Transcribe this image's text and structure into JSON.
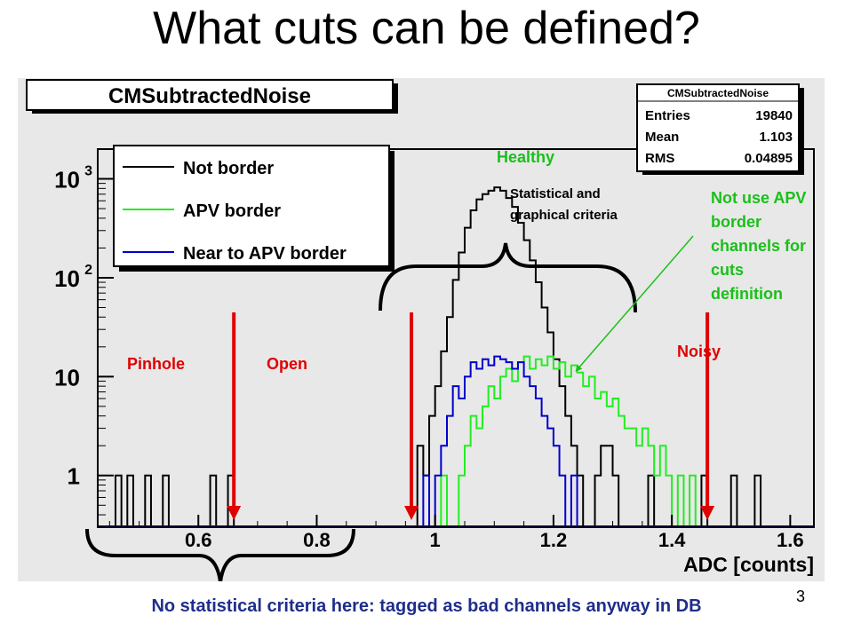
{
  "slide": {
    "title": "What cuts can be defined?",
    "footer": "No statistical criteria here: tagged as bad channels anyway in DB",
    "page_number": "3"
  },
  "stats_box": {
    "title": "CMSubtractedNoise",
    "entries_label": "Entries",
    "entries_value": "19840",
    "mean_label": "Mean",
    "mean_value": "1.103",
    "rms_label": "RMS",
    "rms_value": "0.04895"
  },
  "annotations": {
    "healthy": "Healthy",
    "statistical": [
      "Statistical and",
      "graphical criteria"
    ],
    "pinhole": "Pinhole",
    "open": "Open",
    "noisy": "Noisy",
    "apv_note": [
      "Not use APV",
      "border",
      "channels for",
      "cuts",
      "definition"
    ]
  },
  "colors": {
    "cut_arrow": "#e00000",
    "annotation_green": "#19c019",
    "label_red": "#e00000",
    "footer_blue": "#1f2e8a",
    "plot_background": "#e8e8e8",
    "not_border": "#000000",
    "apv_border": "#22ee22",
    "near_apv_border": "#0000cc"
  },
  "chart_data": {
    "type": "line",
    "title": "CMSubtractedNoise",
    "xlabel": "ADC [counts]",
    "ylabel": "",
    "xlim": [
      0.43,
      1.64
    ],
    "ylim": [
      0.3,
      2000
    ],
    "yscale": "log",
    "x_ticks": [
      "0.6",
      "0.8",
      "1",
      "1.2",
      "1.4",
      "1.6"
    ],
    "y_ticks": [
      {
        "value": 1,
        "base": "1",
        "exp": ""
      },
      {
        "value": 10,
        "base": "10",
        "exp": ""
      },
      {
        "value": 100,
        "base": "10",
        "exp": "2"
      },
      {
        "value": 1000,
        "base": "10",
        "exp": "3"
      }
    ],
    "legend_placement": "top-left",
    "series": [
      {
        "name": "Not border",
        "color": "#000000",
        "points": [
          [
            0.45,
            0.3
          ],
          [
            0.46,
            1
          ],
          [
            0.47,
            0.3
          ],
          [
            0.48,
            1
          ],
          [
            0.49,
            0.3
          ],
          [
            0.51,
            1
          ],
          [
            0.52,
            0.3
          ],
          [
            0.54,
            1
          ],
          [
            0.55,
            0.3
          ],
          [
            0.62,
            1
          ],
          [
            0.63,
            0.3
          ],
          [
            0.65,
            1
          ],
          [
            0.66,
            0.3
          ],
          [
            0.97,
            2
          ],
          [
            0.98,
            1
          ],
          [
            0.99,
            4
          ],
          [
            1.0,
            8
          ],
          [
            1.01,
            18
          ],
          [
            1.02,
            40
          ],
          [
            1.03,
            95
          ],
          [
            1.04,
            180
          ],
          [
            1.05,
            320
          ],
          [
            1.06,
            480
          ],
          [
            1.07,
            620
          ],
          [
            1.08,
            700
          ],
          [
            1.09,
            760
          ],
          [
            1.1,
            820
          ],
          [
            1.11,
            760
          ],
          [
            1.12,
            640
          ],
          [
            1.13,
            520
          ],
          [
            1.14,
            360
          ],
          [
            1.15,
            240
          ],
          [
            1.16,
            150
          ],
          [
            1.17,
            90
          ],
          [
            1.18,
            50
          ],
          [
            1.19,
            28
          ],
          [
            1.2,
            15
          ],
          [
            1.21,
            8
          ],
          [
            1.22,
            4
          ],
          [
            1.23,
            2
          ],
          [
            1.24,
            1
          ],
          [
            1.25,
            0.3
          ],
          [
            1.27,
            1
          ],
          [
            1.28,
            2
          ],
          [
            1.3,
            1
          ],
          [
            1.31,
            0.3
          ],
          [
            1.36,
            1
          ],
          [
            1.37,
            0.3
          ],
          [
            1.45,
            1
          ],
          [
            1.46,
            0.3
          ],
          [
            1.5,
            1
          ],
          [
            1.51,
            0.3
          ],
          [
            1.54,
            1
          ],
          [
            1.55,
            0.3
          ]
        ]
      },
      {
        "name": "APV border",
        "color": "#22ee22",
        "points": [
          [
            1.0,
            0.3
          ],
          [
            1.01,
            1
          ],
          [
            1.02,
            0.3
          ],
          [
            1.04,
            1
          ],
          [
            1.05,
            2
          ],
          [
            1.06,
            4
          ],
          [
            1.07,
            3
          ],
          [
            1.08,
            5
          ],
          [
            1.09,
            8
          ],
          [
            1.1,
            6
          ],
          [
            1.11,
            10
          ],
          [
            1.12,
            12
          ],
          [
            1.13,
            9
          ],
          [
            1.14,
            14
          ],
          [
            1.15,
            16
          ],
          [
            1.16,
            12
          ],
          [
            1.17,
            15
          ],
          [
            1.18,
            13
          ],
          [
            1.19,
            16
          ],
          [
            1.2,
            12
          ],
          [
            1.21,
            14
          ],
          [
            1.22,
            10
          ],
          [
            1.23,
            13
          ],
          [
            1.24,
            11
          ],
          [
            1.25,
            8
          ],
          [
            1.26,
            10
          ],
          [
            1.27,
            6
          ],
          [
            1.28,
            7
          ],
          [
            1.29,
            5
          ],
          [
            1.3,
            6
          ],
          [
            1.31,
            4
          ],
          [
            1.32,
            3
          ],
          [
            1.33,
            3
          ],
          [
            1.34,
            2
          ],
          [
            1.35,
            3
          ],
          [
            1.36,
            2
          ],
          [
            1.37,
            1
          ],
          [
            1.38,
            2
          ],
          [
            1.39,
            1
          ],
          [
            1.4,
            0.3
          ],
          [
            1.41,
            1
          ],
          [
            1.42,
            0.3
          ],
          [
            1.43,
            1
          ],
          [
            1.44,
            0.3
          ]
        ]
      },
      {
        "name": "Near to APV border",
        "color": "#0000cc",
        "points": [
          [
            0.97,
            0.3
          ],
          [
            0.98,
            1
          ],
          [
            0.99,
            0.3
          ],
          [
            1.0,
            1
          ],
          [
            1.01,
            2
          ],
          [
            1.02,
            4
          ],
          [
            1.03,
            8
          ],
          [
            1.04,
            6
          ],
          [
            1.05,
            10
          ],
          [
            1.06,
            14
          ],
          [
            1.07,
            12
          ],
          [
            1.08,
            15
          ],
          [
            1.09,
            13
          ],
          [
            1.1,
            16
          ],
          [
            1.11,
            15
          ],
          [
            1.12,
            14
          ],
          [
            1.13,
            12
          ],
          [
            1.14,
            14
          ],
          [
            1.15,
            10
          ],
          [
            1.16,
            8
          ],
          [
            1.17,
            6
          ],
          [
            1.18,
            4
          ],
          [
            1.19,
            3
          ],
          [
            1.2,
            2
          ],
          [
            1.21,
            1
          ],
          [
            1.22,
            0.3
          ],
          [
            1.23,
            1
          ],
          [
            1.24,
            0.3
          ]
        ]
      }
    ],
    "cut_positions": [
      0.66,
      0.96,
      1.46
    ]
  }
}
